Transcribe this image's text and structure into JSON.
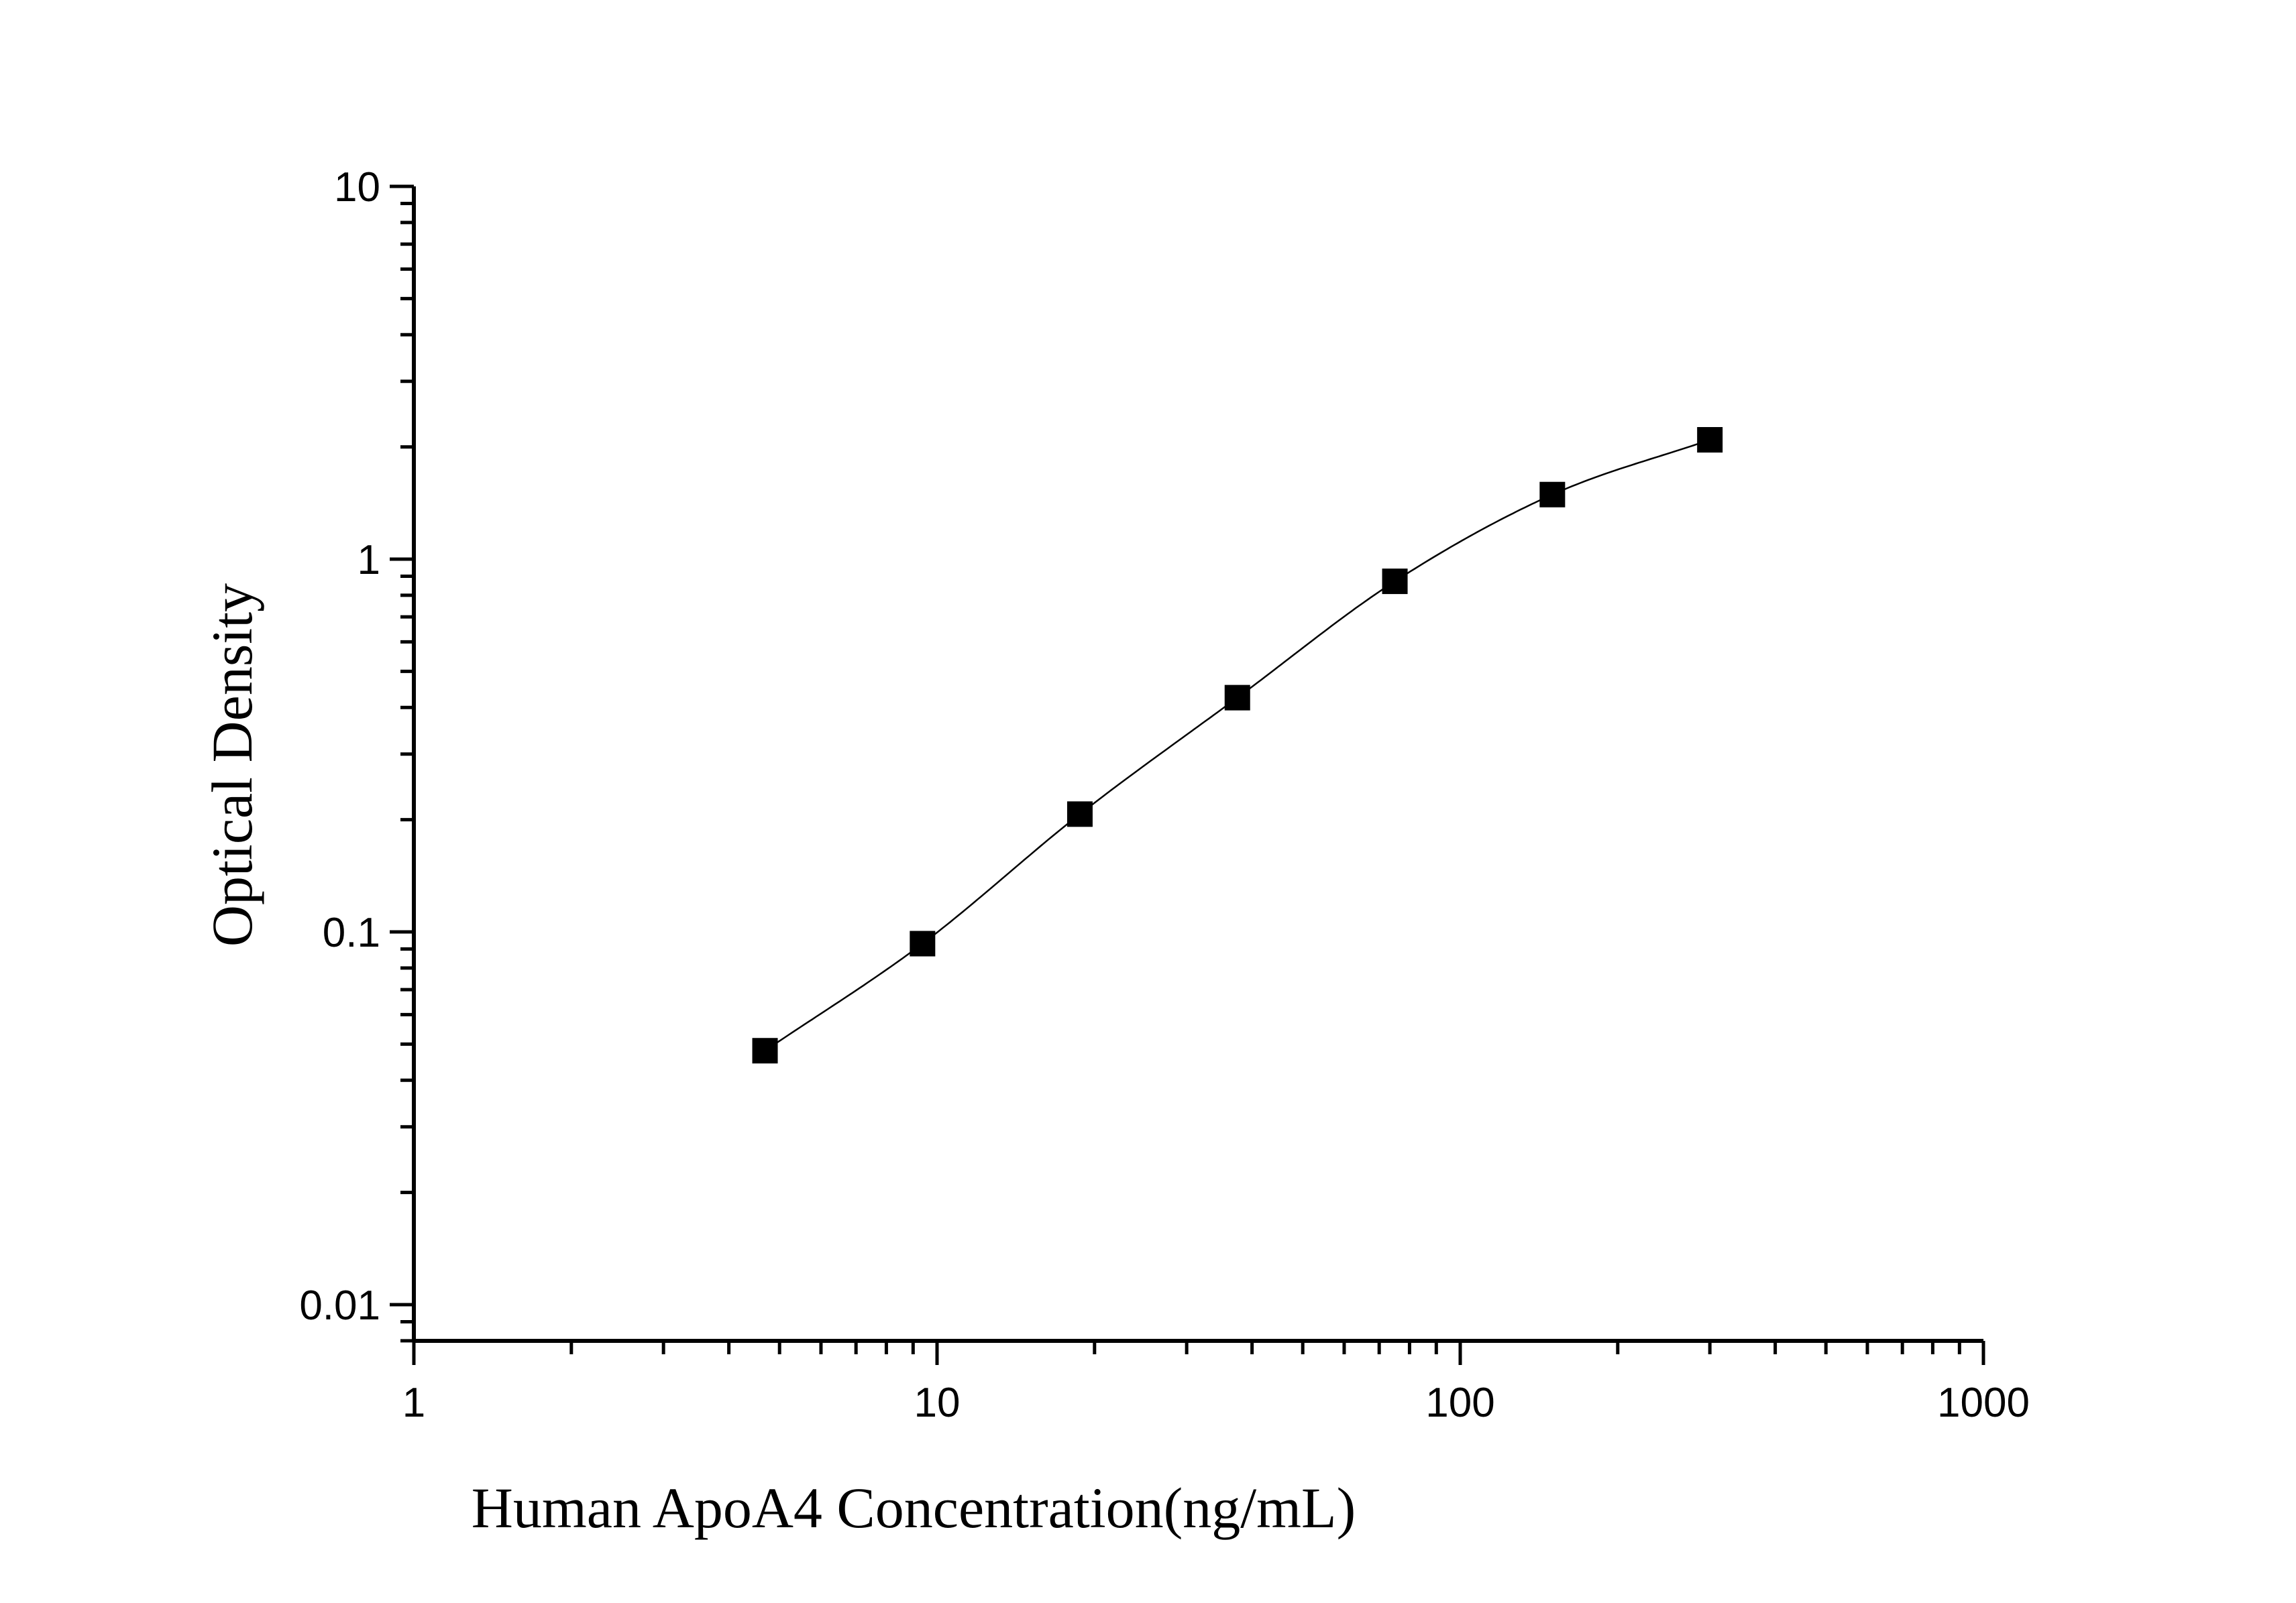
{
  "chart_data": {
    "type": "scatter",
    "xlabel": "Human ApoA4 Concentration(ng/mL)",
    "ylabel": "Optical Density",
    "x_scale": "log",
    "y_scale": "log",
    "xlim": [
      1,
      1000
    ],
    "ylim": [
      0.008,
      10
    ],
    "x_ticks": [
      {
        "value": 1,
        "label": "1"
      },
      {
        "value": 10,
        "label": "10"
      },
      {
        "value": 100,
        "label": "100"
      },
      {
        "value": 1000,
        "label": "1000"
      }
    ],
    "y_ticks": [
      {
        "value": 0.01,
        "label": "0.01"
      },
      {
        "value": 0.1,
        "label": "0.1"
      },
      {
        "value": 1,
        "label": "1"
      },
      {
        "value": 10,
        "label": "10"
      }
    ],
    "grid": false,
    "legend": "none",
    "series": [
      {
        "marker": "square",
        "fit_curve": true,
        "x": [
          4.69,
          9.38,
          18.75,
          37.5,
          75,
          150,
          300
        ],
        "y": [
          0.048,
          0.093,
          0.207,
          0.425,
          0.872,
          1.49,
          2.09
        ]
      }
    ],
    "colors": {
      "axis": "#000000",
      "marker": "#000000",
      "curve": "#000000"
    }
  }
}
